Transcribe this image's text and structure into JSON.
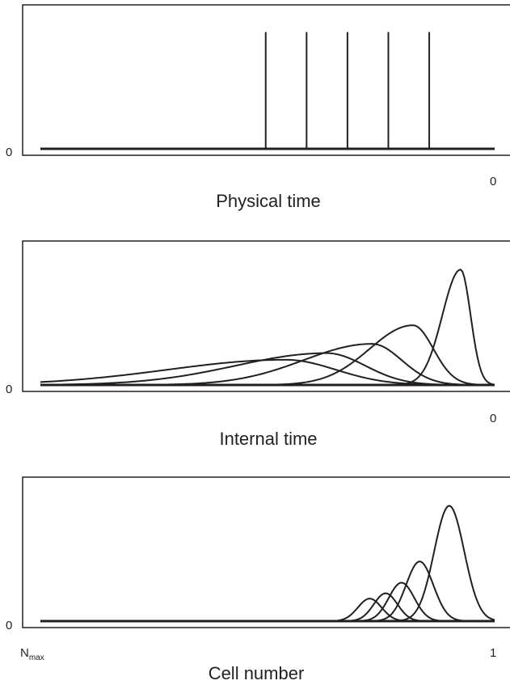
{
  "chart_data": [
    {
      "type": "line",
      "subtype": "spikes",
      "xlabel": "Physical time",
      "y_tick_label": "0",
      "x_right_tick_label": "0",
      "spike_positions": [
        0.54,
        0.64,
        0.74,
        0.84,
        0.94
      ],
      "spike_height": 0.88,
      "xlim": [
        0,
        1
      ],
      "ylim": [
        0,
        1
      ],
      "grid": false
    },
    {
      "type": "line",
      "xlabel": "Internal time",
      "y_tick_label": "0",
      "x_right_tick_label": "0",
      "xlim": [
        0,
        1
      ],
      "ylim": [
        0,
        1
      ],
      "grid": false,
      "series": [
        {
          "peak_x": 0.54,
          "peak_y": 0.19,
          "width_left": 0.26,
          "width_right": 0.11
        },
        {
          "peak_x": 0.63,
          "peak_y": 0.24,
          "width_left": 0.2,
          "width_right": 0.085
        },
        {
          "peak_x": 0.73,
          "peak_y": 0.31,
          "width_left": 0.15,
          "width_right": 0.065
        },
        {
          "peak_x": 0.82,
          "peak_y": 0.45,
          "width_left": 0.095,
          "width_right": 0.045
        },
        {
          "peak_x": 0.925,
          "peak_y": 0.87,
          "width_left": 0.04,
          "width_right": 0.022
        }
      ]
    },
    {
      "type": "line",
      "xlabel": "Cell number",
      "y_tick_label": "0",
      "x_left_tick_label": "N",
      "x_left_tick_sub": "max",
      "x_right_tick_label": "1",
      "xlim": [
        0,
        1
      ],
      "ylim": [
        0,
        1
      ],
      "grid": false,
      "series": [
        {
          "peak_x": 0.725,
          "peak_y": 0.17,
          "width": 0.026
        },
        {
          "peak_x": 0.76,
          "peak_y": 0.21,
          "width": 0.026
        },
        {
          "peak_x": 0.795,
          "peak_y": 0.29,
          "width": 0.028
        },
        {
          "peak_x": 0.835,
          "peak_y": 0.45,
          "width": 0.03
        },
        {
          "peak_x": 0.9,
          "peak_y": 0.87,
          "width": 0.033
        }
      ]
    }
  ]
}
